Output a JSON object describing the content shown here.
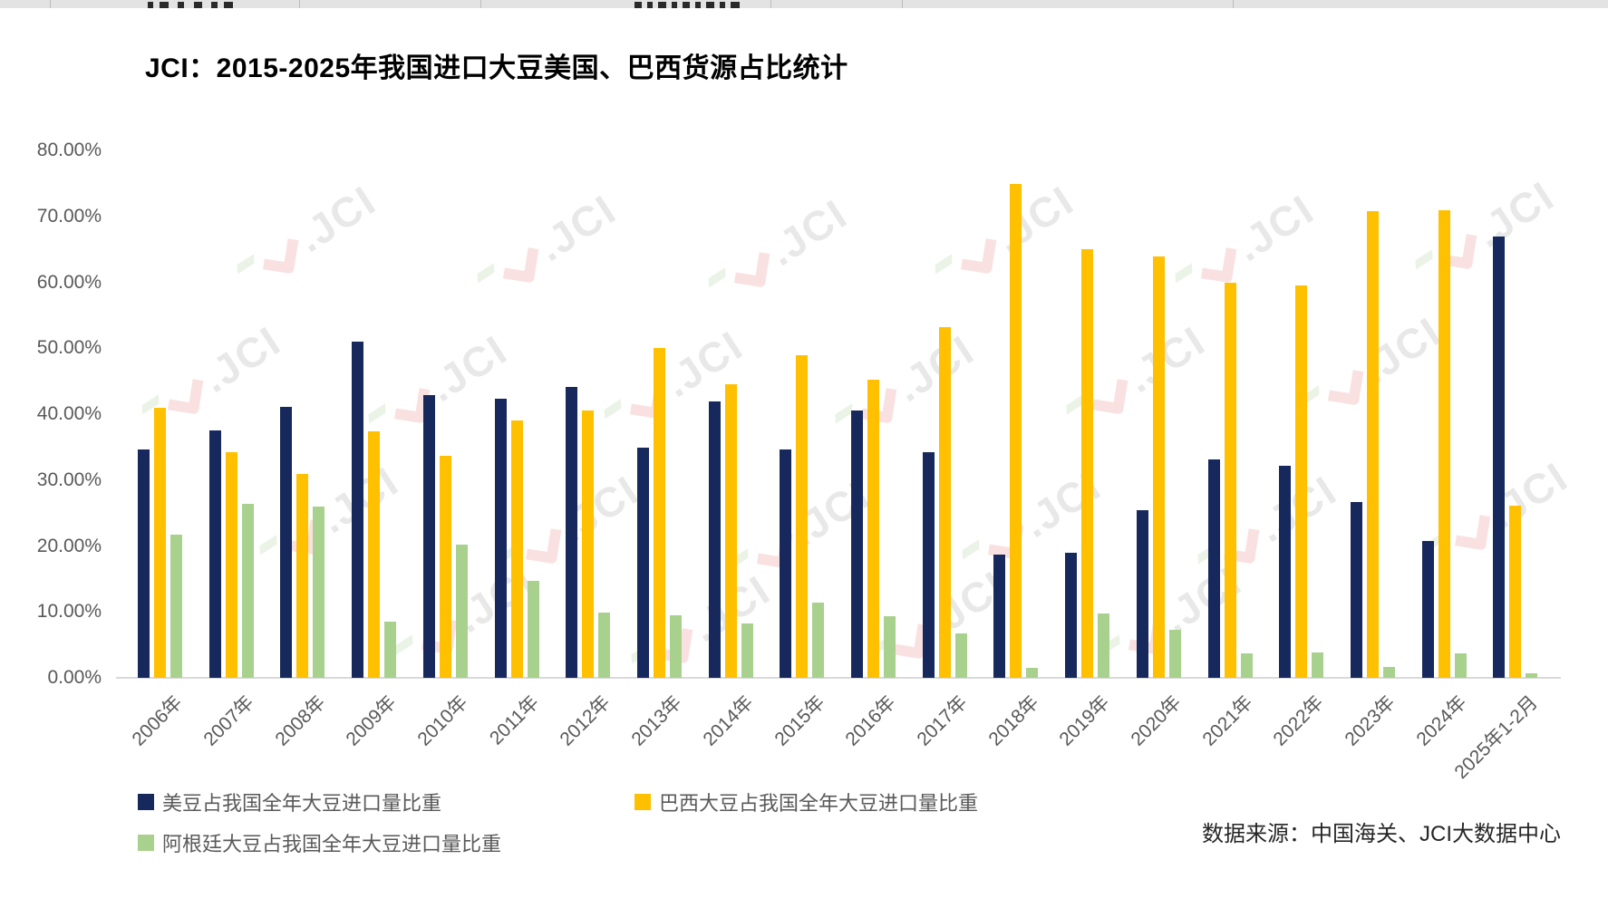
{
  "title": "JCI：2015-2025年我国进口大豆美国、巴西货源占比统计",
  "source_note": "数据来源：中国海关、JCI大数据中心",
  "watermark_text": "JCI",
  "colors": {
    "us_navy": "#17295c",
    "brazil_gold": "#ffc000",
    "argentina_green": "#a9d18e",
    "axis_line": "#d9d9d9",
    "tick_text": "#595959"
  },
  "legend": [
    {
      "label": "美豆占我国全年大豆进口量比重",
      "color": "#17295c"
    },
    {
      "label": "巴西大豆占我国全年大豆进口量比重",
      "color": "#ffc000"
    },
    {
      "label": "阿根廷大豆占我国全年大豆进口量比重",
      "color": "#a9d18e"
    }
  ],
  "chart_data": {
    "type": "bar",
    "title": "JCI：2015-2025年我国进口大豆美国、巴西货源占比统计",
    "xlabel": "",
    "ylabel": "",
    "ylim": [
      0,
      80
    ],
    "ytick_step": 10,
    "yticks": [
      "80.00%",
      "70.00%",
      "60.00%",
      "50.00%",
      "40.00%",
      "30.00%",
      "20.00%",
      "10.00%",
      "0.00%"
    ],
    "grid": false,
    "legend_position": "bottom",
    "categories": [
      "2006年",
      "2007年",
      "2008年",
      "2009年",
      "2010年",
      "2011年",
      "2012年",
      "2013年",
      "2014年",
      "2015年",
      "2016年",
      "2017年",
      "2018年",
      "2019年",
      "2020年",
      "2021年",
      "2022年",
      "2023年",
      "2024年",
      "2025年1-2月"
    ],
    "series": [
      {
        "name": "美豆占我国全年大豆进口量比重",
        "color": "#17295c",
        "values": [
          34.7,
          37.5,
          41.1,
          51.0,
          42.9,
          42.3,
          44.2,
          34.9,
          41.9,
          34.6,
          40.6,
          34.2,
          18.7,
          19.0,
          25.5,
          33.2,
          32.2,
          26.7,
          20.8,
          67.0
        ]
      },
      {
        "name": "巴西大豆占我国全年大豆进口量比重",
        "color": "#ffc000",
        "values": [
          41.0,
          34.2,
          30.9,
          37.4,
          33.7,
          39.1,
          40.6,
          50.0,
          44.6,
          48.9,
          45.3,
          53.2,
          75.0,
          65.0,
          63.9,
          60.0,
          59.5,
          70.8,
          71.0,
          26.2
        ]
      },
      {
        "name": "阿根廷大豆占我国全年大豆进口量比重",
        "color": "#a9d18e",
        "values": [
          21.8,
          26.4,
          26.0,
          8.6,
          20.2,
          14.7,
          9.9,
          9.5,
          8.3,
          11.4,
          9.3,
          6.8,
          1.5,
          9.8,
          7.3,
          3.7,
          3.8,
          1.7,
          3.7,
          0.7
        ]
      }
    ]
  }
}
